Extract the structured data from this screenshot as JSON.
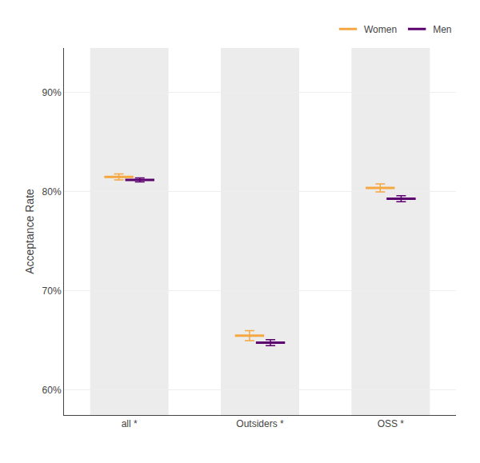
{
  "chart_data": {
    "type": "interval",
    "categories": [
      "all *",
      "Outsiders *",
      "OSS *"
    ],
    "series": [
      {
        "name": "Women",
        "color": "#f5a742",
        "values": [
          0.815,
          0.655,
          0.804
        ],
        "ci_low": [
          0.812,
          0.65,
          0.8
        ],
        "ci_high": [
          0.818,
          0.66,
          0.808
        ]
      },
      {
        "name": "Men",
        "color": "#5c0070",
        "values": [
          0.812,
          0.648,
          0.793
        ],
        "ci_low": [
          0.81,
          0.645,
          0.79
        ],
        "ci_high": [
          0.814,
          0.651,
          0.796
        ]
      }
    ],
    "ylabel": "Acceptance Rate",
    "ylim": [
      0.575,
      0.945
    ],
    "yticks": [
      {
        "value": 0.6,
        "label": "60%"
      },
      {
        "value": 0.7,
        "label": "70%"
      },
      {
        "value": 0.8,
        "label": "80%"
      },
      {
        "value": 0.9,
        "label": "90%"
      }
    ],
    "grid": true,
    "legend": "upper right"
  }
}
